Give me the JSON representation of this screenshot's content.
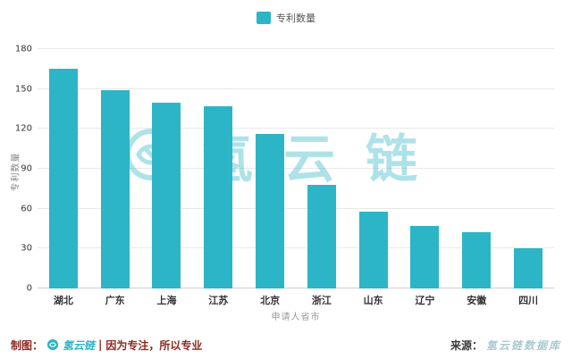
{
  "chart_data": {
    "type": "bar",
    "title": "",
    "legend": "专利数量",
    "categories": [
      "湖北",
      "广东",
      "上海",
      "江苏",
      "北京",
      "浙江",
      "山东",
      "辽宁",
      "安徽",
      "四川"
    ],
    "values": [
      165,
      149,
      140,
      137,
      116,
      78,
      58,
      47,
      42,
      30
    ],
    "xlabel": "申请人省市",
    "ylabel": "专利数量",
    "ylim": [
      0,
      180
    ],
    "yticks": [
      0,
      30,
      60,
      90,
      120,
      150,
      180
    ],
    "grid": true,
    "legend_position": "top-center",
    "bar_color": "#2cb5c6"
  },
  "watermark": {
    "text": "氢云链"
  },
  "footer": {
    "credit_prefix": "制图：",
    "credit_brand": "氢云链",
    "credit_separator": "|",
    "credit_slogan": "因为专注，所以专业",
    "source_prefix": "来源：",
    "source_name": "氢云链数据库"
  },
  "colors": {
    "bar": "#2cb5c6",
    "maroon": "#8a2a22",
    "source_name": "#aac9ce",
    "watermark": "#2cb5c6"
  }
}
